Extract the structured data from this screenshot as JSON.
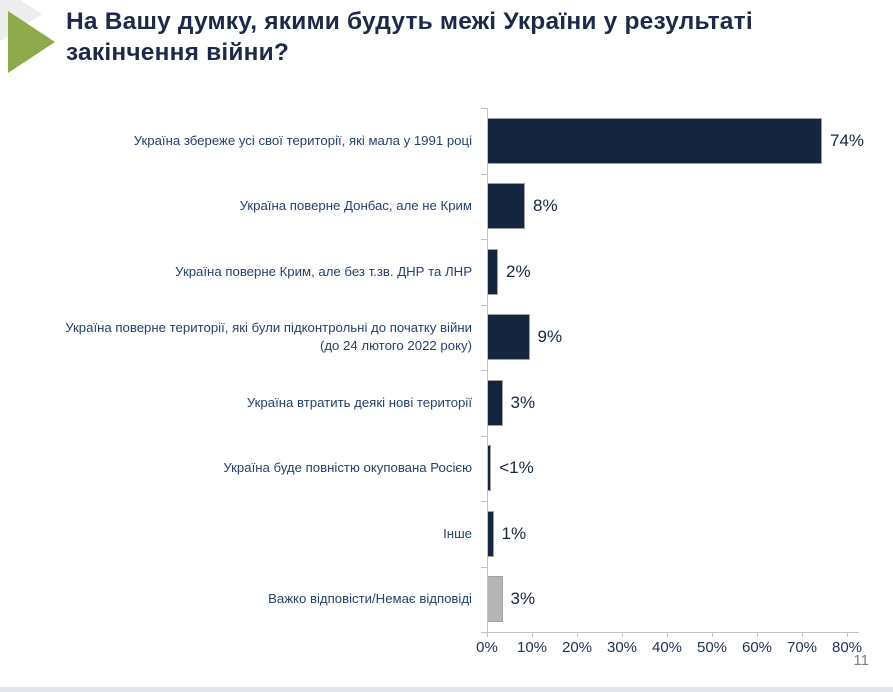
{
  "slide": {
    "page_number": "11"
  },
  "header": {
    "title": "На Вашу думку, якими будуть межі України у результаті закінчення війни?"
  },
  "icons": {
    "accent_triangle": "green-right-triangle",
    "backdrop_triangle": "gray-right-triangle"
  },
  "colors": {
    "bar_primary": "#16253f",
    "bar_muted": "#b5b5b5",
    "accent_green": "#8faa4d",
    "accent_gray": "#ededed",
    "title_text": "#1d2947",
    "category_text": "#24426b",
    "axis_line": "#c3c3c3",
    "page_number_text": "#7f7f7f"
  },
  "chart_data": {
    "type": "bar",
    "orientation": "horizontal",
    "title": "",
    "xlabel": "",
    "ylabel": "",
    "xlim": [
      0,
      80
    ],
    "x_ticks": [
      "0%",
      "10%",
      "20%",
      "30%",
      "40%",
      "50%",
      "60%",
      "70%",
      "80%"
    ],
    "grid": false,
    "legend": false,
    "categories": [
      "Україна збереже усі свої території, які мала у 1991 році",
      "Україна поверне Донбас, але не Крим",
      "Україна поверне Крим, але без т.зв. ДНР та ЛНР",
      "Україна поверне території, які були підконтрольні до початку війни (до 24 лютого 2022 року)",
      "Україна втратить деякі нові території",
      "Україна буде повністю окупована Росією",
      "Інше",
      "Важко відповісти/Немає відповіді"
    ],
    "values": [
      74,
      8,
      2,
      9,
      3,
      0.5,
      1,
      3
    ],
    "value_labels": [
      "74%",
      "8%",
      "2%",
      "9%",
      "3%",
      "<1%",
      "1%",
      "3%"
    ],
    "bar_color_keys": [
      "bar_primary",
      "bar_primary",
      "bar_primary",
      "bar_primary",
      "bar_primary",
      "bar_primary",
      "bar_primary",
      "bar_muted"
    ]
  }
}
